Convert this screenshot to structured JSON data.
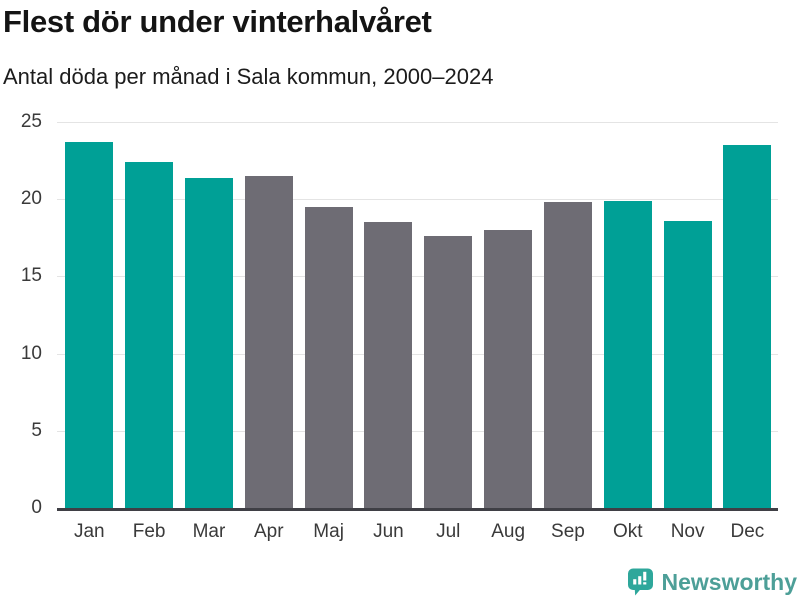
{
  "header": {
    "title": "Flest dör under vinterhalvåret",
    "subtitle": "Antal döda per månad i Sala kommun, 2000–2024"
  },
  "chart_data": {
    "type": "bar",
    "title": "Flest dör under vinterhalvåret",
    "subtitle": "Antal döda per månad i Sala kommun, 2000–2024",
    "categories": [
      "Jan",
      "Feb",
      "Mar",
      "Apr",
      "Maj",
      "Jun",
      "Jul",
      "Aug",
      "Sep",
      "Okt",
      "Nov",
      "Dec"
    ],
    "values": [
      23.7,
      22.4,
      21.4,
      21.5,
      19.5,
      18.5,
      17.6,
      18.0,
      19.8,
      19.9,
      18.6,
      23.5
    ],
    "bar_colors": [
      "teal",
      "teal",
      "teal",
      "gray",
      "gray",
      "gray",
      "gray",
      "gray",
      "gray",
      "teal",
      "teal",
      "teal"
    ],
    "xlabel": "",
    "ylabel": "",
    "ylim": [
      0,
      25
    ],
    "yticks": [
      0,
      5,
      10,
      15,
      20,
      25
    ],
    "grid": true,
    "legend_position": "none"
  },
  "colors": {
    "teal": "#00a096",
    "gray": "#6e6c74",
    "gridline": "#e4e4e4",
    "axis_line": "#3f3f45",
    "title_text": "#141414",
    "tick_text": "#3a3a3a",
    "logo_bubble": "#2ea79b",
    "logo_text": "#4d9f98",
    "background": "#ffffff"
  },
  "footer": {
    "brand_label": "Newsworthy"
  }
}
